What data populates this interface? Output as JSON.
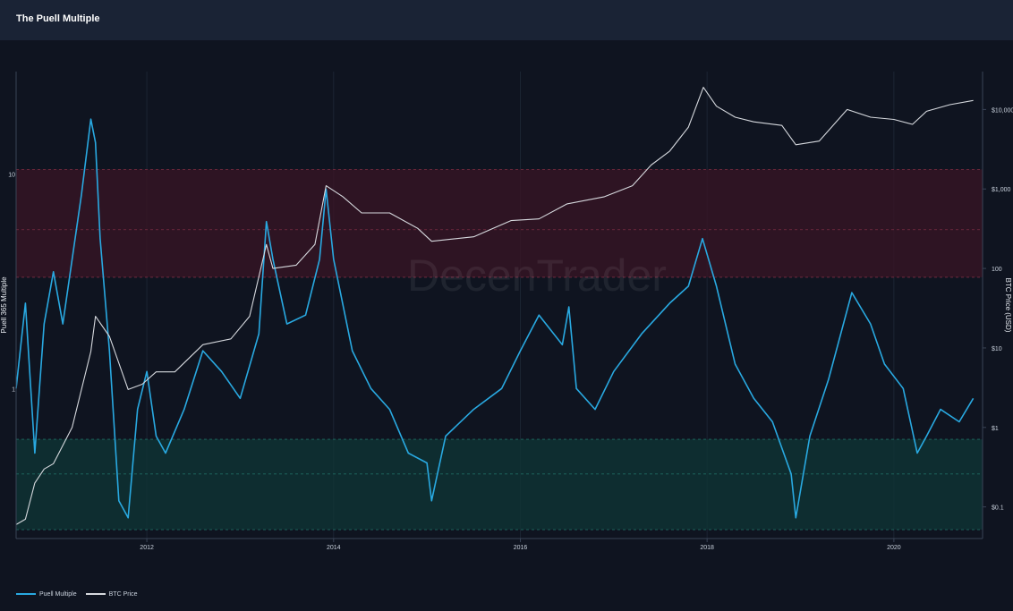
{
  "page": {
    "title": "The Puell Multiple"
  },
  "chart_data": {
    "type": "line",
    "title": "The Puell Multiple",
    "watermark": "DecenTrader",
    "xlabel": "",
    "x_ticks": [
      "2012",
      "2014",
      "2016",
      "2018",
      "2020"
    ],
    "x_range": [
      2010.6,
      2020.95
    ],
    "y_left": {
      "label": "Puell 365 Multiple",
      "scale": "log",
      "range": [
        0.2,
        30
      ],
      "ticks": [
        "1",
        "10"
      ]
    },
    "y_right": {
      "label": "BTC Price (USD)",
      "scale": "log",
      "range": [
        0.04,
        30000
      ],
      "ticks": [
        "$0.1",
        "$1",
        "$10",
        "100",
        "$1,000",
        "$10,000"
      ]
    },
    "bands": [
      {
        "name": "high",
        "from": 3.3,
        "to": 10.5,
        "mid": 5.5,
        "color": "#3a1424"
      },
      {
        "name": "low",
        "from": 0.22,
        "to": 0.58,
        "mid": 0.4,
        "color": "#0f3535"
      }
    ],
    "series": [
      {
        "name": "Puell Multiple",
        "axis": "left",
        "color": "#29a9e1",
        "x": [
          2010.6,
          2010.7,
          2010.8,
          2010.9,
          2011.0,
          2011.1,
          2011.2,
          2011.3,
          2011.4,
          2011.45,
          2011.5,
          2011.6,
          2011.7,
          2011.8,
          2011.9,
          2012.0,
          2012.1,
          2012.2,
          2012.4,
          2012.6,
          2012.8,
          2013.0,
          2013.2,
          2013.28,
          2013.35,
          2013.5,
          2013.7,
          2013.85,
          2013.92,
          2014.0,
          2014.2,
          2014.4,
          2014.6,
          2014.8,
          2015.0,
          2015.05,
          2015.2,
          2015.5,
          2015.8,
          2016.0,
          2016.2,
          2016.45,
          2016.52,
          2016.6,
          2016.8,
          2017.0,
          2017.3,
          2017.6,
          2017.8,
          2017.95,
          2018.1,
          2018.3,
          2018.5,
          2018.7,
          2018.9,
          2018.95,
          2019.1,
          2019.3,
          2019.55,
          2019.75,
          2019.9,
          2020.1,
          2020.25,
          2020.35,
          2020.5,
          2020.7,
          2020.85
        ],
        "values": [
          1.0,
          2.5,
          0.5,
          2.0,
          3.5,
          2.0,
          4.0,
          8.0,
          18.0,
          14.0,
          5.0,
          1.5,
          0.3,
          0.25,
          0.8,
          1.2,
          0.6,
          0.5,
          0.8,
          1.5,
          1.2,
          0.9,
          1.8,
          6.0,
          4.0,
          2.0,
          2.2,
          4.0,
          8.5,
          4.0,
          1.5,
          1.0,
          0.8,
          0.5,
          0.45,
          0.3,
          0.6,
          0.8,
          1.0,
          1.5,
          2.2,
          1.6,
          2.4,
          1.0,
          0.8,
          1.2,
          1.8,
          2.5,
          3.0,
          5.0,
          3.0,
          1.3,
          0.9,
          0.7,
          0.4,
          0.25,
          0.6,
          1.1,
          2.8,
          2.0,
          1.3,
          1.0,
          0.5,
          0.6,
          0.8,
          0.7,
          0.9
        ]
      },
      {
        "name": "BTC Price",
        "axis": "right",
        "color": "#d6d9de",
        "x": [
          2010.6,
          2010.7,
          2010.8,
          2010.9,
          2011.0,
          2011.2,
          2011.4,
          2011.45,
          2011.6,
          2011.8,
          2011.95,
          2012.1,
          2012.3,
          2012.6,
          2012.9,
          2013.1,
          2013.28,
          2013.35,
          2013.6,
          2013.8,
          2013.92,
          2014.1,
          2014.3,
          2014.6,
          2014.9,
          2015.05,
          2015.5,
          2015.9,
          2016.2,
          2016.5,
          2016.9,
          2017.2,
          2017.4,
          2017.6,
          2017.8,
          2017.96,
          2018.1,
          2018.3,
          2018.5,
          2018.8,
          2018.95,
          2019.2,
          2019.5,
          2019.75,
          2020.0,
          2020.2,
          2020.35,
          2020.6,
          2020.85
        ],
        "values": [
          0.06,
          0.07,
          0.2,
          0.3,
          0.35,
          1.0,
          9.0,
          25.0,
          14.0,
          3.0,
          3.5,
          5.0,
          5.0,
          11.0,
          13.0,
          25.0,
          200.0,
          100.0,
          110.0,
          200.0,
          1100.0,
          800.0,
          500.0,
          500.0,
          320.0,
          220.0,
          250.0,
          400.0,
          420.0,
          650.0,
          800.0,
          1100.0,
          2000.0,
          3000.0,
          6000.0,
          19000.0,
          11000.0,
          8000.0,
          7000.0,
          6300.0,
          3600.0,
          4000.0,
          10000.0,
          8000.0,
          7500.0,
          6500.0,
          9500.0,
          11500.0,
          13000.0
        ]
      }
    ],
    "legend": [
      "Puell Multiple",
      "BTC Price"
    ],
    "grid": true,
    "legend_position": "bottom-left"
  }
}
